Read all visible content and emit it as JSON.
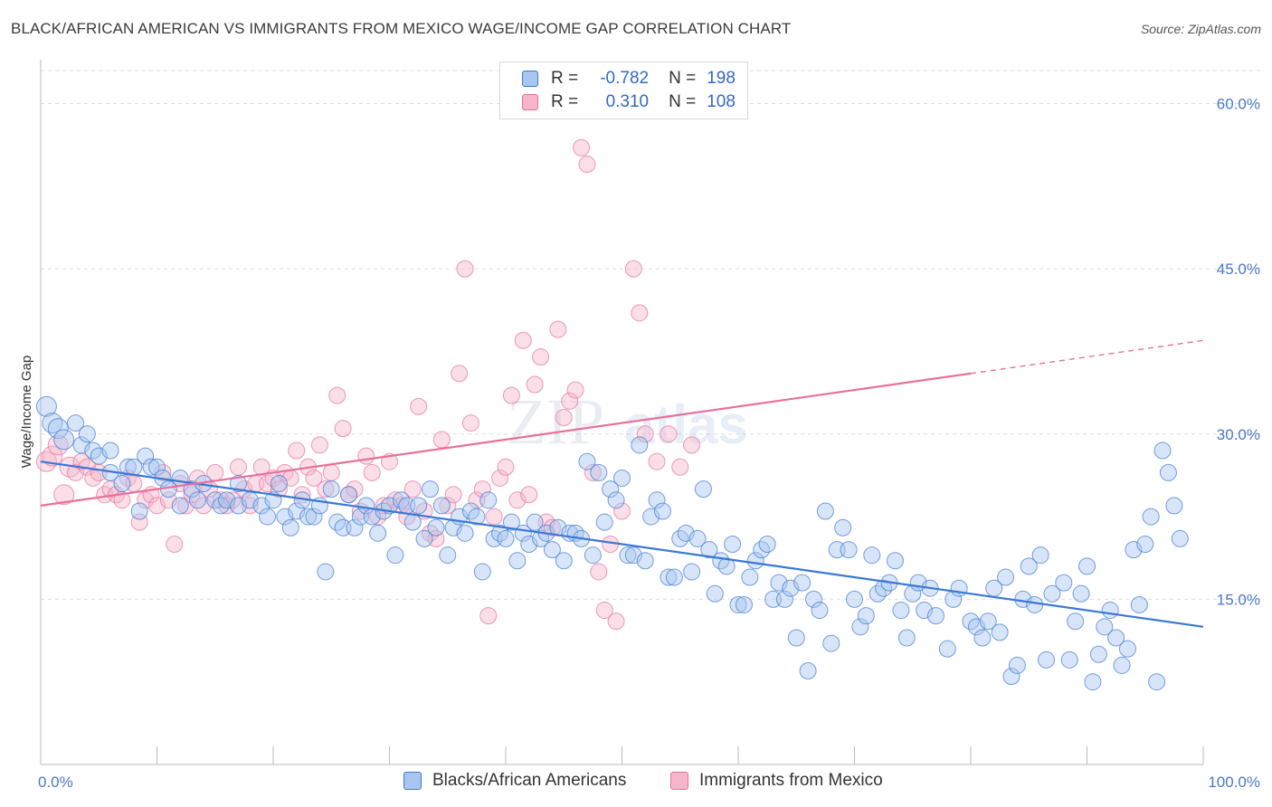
{
  "title": "BLACK/AFRICAN AMERICAN VS IMMIGRANTS FROM MEXICO WAGE/INCOME GAP CORRELATION CHART",
  "source": "Source: ZipAtlas.com",
  "watermark": {
    "zip": "ZIP",
    "atlas": "atlas"
  },
  "legend_top": {
    "rows": [
      {
        "r_label": "R =",
        "r_value": "-0.782",
        "n_label": "N =",
        "n_value": "198"
      },
      {
        "r_label": "R =",
        "r_value": "0.310",
        "n_label": "N =",
        "n_value": "108"
      }
    ]
  },
  "colors": {
    "blue": "#3a78d4",
    "blue_fill": "#a9c6ef",
    "pink": "#e8709a",
    "pink_fill": "#f5b6cb",
    "grid": "#dddddd",
    "axis_text": "#4a78c9"
  },
  "chart_data": {
    "type": "scatter",
    "title": "BLACK/AFRICAN AMERICAN VS IMMIGRANTS FROM MEXICO WAGE/INCOME GAP CORRELATION CHART",
    "xlabel": "",
    "ylabel": "Wage/Income Gap",
    "xlim": [
      0,
      100
    ],
    "ylim": [
      0,
      63
    ],
    "x_tick_labels": [
      "0.0%",
      "100.0%"
    ],
    "y_ticks": [
      15,
      30,
      45,
      60
    ],
    "y_tick_labels": [
      "15.0%",
      "30.0%",
      "45.0%",
      "60.0%"
    ],
    "grid": true,
    "series": [
      {
        "name": "Blacks/African Americans",
        "color": "#3a78d4",
        "r": -0.782,
        "n": 198,
        "trend": {
          "x0": 0,
          "y0": 27.5,
          "x1": 100,
          "y1": 12.5
        },
        "points": [
          [
            0.5,
            32.5
          ],
          [
            1,
            31
          ],
          [
            1.5,
            30.5
          ],
          [
            2,
            29.5
          ],
          [
            3,
            31
          ],
          [
            3.5,
            29
          ],
          [
            4,
            30
          ],
          [
            4.5,
            28.5
          ],
          [
            5,
            28
          ],
          [
            6,
            28.5
          ],
          [
            6,
            26.5
          ],
          [
            7,
            25.5
          ],
          [
            7.5,
            27
          ],
          [
            8,
            27
          ],
          [
            8.5,
            23
          ],
          [
            9,
            28
          ],
          [
            9.5,
            27
          ],
          [
            10,
            27
          ],
          [
            10.5,
            26
          ],
          [
            11,
            25
          ],
          [
            12,
            26
          ],
          [
            12,
            23.5
          ],
          [
            13,
            25
          ],
          [
            13.5,
            24
          ],
          [
            14,
            25.5
          ],
          [
            15,
            24
          ],
          [
            15.5,
            23.5
          ],
          [
            16,
            24
          ],
          [
            17,
            23.5
          ],
          [
            17,
            25.5
          ],
          [
            18,
            24
          ],
          [
            19,
            23.5
          ],
          [
            19.5,
            22.5
          ],
          [
            20,
            24
          ],
          [
            20.5,
            25.5
          ],
          [
            21,
            22.5
          ],
          [
            21.5,
            21.5
          ],
          [
            22,
            23
          ],
          [
            22.5,
            24
          ],
          [
            23,
            22.5
          ],
          [
            23.5,
            22.5
          ],
          [
            24,
            23.5
          ],
          [
            24.5,
            17.5
          ],
          [
            25,
            25
          ],
          [
            25.5,
            22
          ],
          [
            26,
            21.5
          ],
          [
            26.5,
            24.5
          ],
          [
            27,
            21.5
          ],
          [
            27.5,
            22.5
          ],
          [
            28,
            23.5
          ],
          [
            28.5,
            22.5
          ],
          [
            29,
            21
          ],
          [
            29.5,
            23
          ],
          [
            30,
            23.5
          ],
          [
            30.5,
            19
          ],
          [
            31,
            24
          ],
          [
            31.5,
            23.5
          ],
          [
            32,
            22
          ],
          [
            32.5,
            23.5
          ],
          [
            33,
            20.5
          ],
          [
            33.5,
            25
          ],
          [
            34,
            21.5
          ],
          [
            34.5,
            23.5
          ],
          [
            35,
            19
          ],
          [
            35.5,
            21.5
          ],
          [
            36,
            22.5
          ],
          [
            36.5,
            21
          ],
          [
            37,
            23
          ],
          [
            37.5,
            22.5
          ],
          [
            38,
            17.5
          ],
          [
            38.5,
            24
          ],
          [
            39,
            20.5
          ],
          [
            39.5,
            21
          ],
          [
            40,
            20.5
          ],
          [
            40.5,
            22
          ],
          [
            41,
            18.5
          ],
          [
            41.5,
            21
          ],
          [
            42,
            20
          ],
          [
            42.5,
            22
          ],
          [
            43,
            20.5
          ],
          [
            43.5,
            21
          ],
          [
            44,
            19.5
          ],
          [
            44.5,
            21.5
          ],
          [
            45,
            18.5
          ],
          [
            45.5,
            21
          ],
          [
            46,
            21
          ],
          [
            46.5,
            20.5
          ],
          [
            47,
            27.5
          ],
          [
            47.5,
            19
          ],
          [
            48,
            26.5
          ],
          [
            48.5,
            22
          ],
          [
            49,
            25
          ],
          [
            49.5,
            24
          ],
          [
            50,
            26
          ],
          [
            50.5,
            19
          ],
          [
            51,
            19
          ],
          [
            51.5,
            29
          ],
          [
            52,
            18.5
          ],
          [
            52.5,
            22.5
          ],
          [
            53,
            24
          ],
          [
            53.5,
            23
          ],
          [
            54,
            17
          ],
          [
            54.5,
            17
          ],
          [
            55,
            20.5
          ],
          [
            55.5,
            21
          ],
          [
            56,
            17.5
          ],
          [
            56.5,
            20.5
          ],
          [
            57,
            25
          ],
          [
            57.5,
            19.5
          ],
          [
            58,
            15.5
          ],
          [
            58.5,
            18.5
          ],
          [
            59,
            18
          ],
          [
            59.5,
            20
          ],
          [
            60,
            14.5
          ],
          [
            60.5,
            14.5
          ],
          [
            61,
            17
          ],
          [
            61.5,
            18.5
          ],
          [
            62,
            19.5
          ],
          [
            62.5,
            20
          ],
          [
            63,
            15
          ],
          [
            63.5,
            16.5
          ],
          [
            64,
            15
          ],
          [
            64.5,
            16
          ],
          [
            65,
            11.5
          ],
          [
            65.5,
            16.5
          ],
          [
            66,
            8.5
          ],
          [
            66.5,
            15
          ],
          [
            67,
            14
          ],
          [
            67.5,
            23
          ],
          [
            68,
            11
          ],
          [
            68.5,
            19.5
          ],
          [
            69,
            21.5
          ],
          [
            69.5,
            19.5
          ],
          [
            70,
            15
          ],
          [
            70.5,
            12.5
          ],
          [
            71,
            13.5
          ],
          [
            71.5,
            19
          ],
          [
            72,
            15.5
          ],
          [
            72.5,
            16
          ],
          [
            73,
            16.5
          ],
          [
            73.5,
            18.5
          ],
          [
            74,
            14
          ],
          [
            74.5,
            11.5
          ],
          [
            75,
            15.5
          ],
          [
            75.5,
            16.5
          ],
          [
            76,
            14
          ],
          [
            76.5,
            16
          ],
          [
            77,
            13.5
          ],
          [
            78,
            10.5
          ],
          [
            78.5,
            15
          ],
          [
            79,
            16
          ],
          [
            80,
            13
          ],
          [
            80.5,
            12.5
          ],
          [
            81,
            11.5
          ],
          [
            81.5,
            13
          ],
          [
            82,
            16
          ],
          [
            82.5,
            12
          ],
          [
            83,
            17
          ],
          [
            83.5,
            8
          ],
          [
            84,
            9
          ],
          [
            84.5,
            15
          ],
          [
            85,
            18
          ],
          [
            85.5,
            14.5
          ],
          [
            86,
            19
          ],
          [
            86.5,
            9.5
          ],
          [
            87,
            15.5
          ],
          [
            88,
            16.5
          ],
          [
            88.5,
            9.5
          ],
          [
            89,
            13
          ],
          [
            89.5,
            15.5
          ],
          [
            90,
            18
          ],
          [
            90.5,
            7.5
          ],
          [
            91,
            10
          ],
          [
            91.5,
            12.5
          ],
          [
            92,
            14
          ],
          [
            92.5,
            11.5
          ],
          [
            93,
            9
          ],
          [
            93.5,
            10.5
          ],
          [
            94,
            19.5
          ],
          [
            94.5,
            14.5
          ],
          [
            95,
            20
          ],
          [
            95.5,
            22.5
          ],
          [
            96,
            7.5
          ],
          [
            96.5,
            28.5
          ],
          [
            97,
            26.5
          ],
          [
            97.5,
            23.5
          ],
          [
            98,
            20.5
          ]
        ]
      },
      {
        "name": "Immigrants from Mexico",
        "color": "#e8709a",
        "r": 0.31,
        "n": 108,
        "trend": {
          "x0": 0,
          "y0": 23.5,
          "x1": 80,
          "y1": 35.5,
          "x2": 100,
          "y2": 38.5
        },
        "points": [
          [
            0.5,
            27.5
          ],
          [
            1,
            28
          ],
          [
            1.5,
            29
          ],
          [
            2,
            24.5
          ],
          [
            2.5,
            27
          ],
          [
            3,
            26.5
          ],
          [
            3.5,
            27.5
          ],
          [
            4,
            27
          ],
          [
            4.5,
            26
          ],
          [
            5,
            26.5
          ],
          [
            5.5,
            24.5
          ],
          [
            6,
            25
          ],
          [
            6.5,
            24.5
          ],
          [
            7,
            24
          ],
          [
            7.5,
            26
          ],
          [
            8,
            25.5
          ],
          [
            8.5,
            22
          ],
          [
            9,
            24
          ],
          [
            9.5,
            24.5
          ],
          [
            10,
            23.5
          ],
          [
            10.5,
            26.5
          ],
          [
            11,
            24
          ],
          [
            11.5,
            20
          ],
          [
            12,
            25.5
          ],
          [
            12.5,
            23.5
          ],
          [
            13,
            24.5
          ],
          [
            13.5,
            26
          ],
          [
            14,
            23.5
          ],
          [
            14.5,
            25
          ],
          [
            15,
            26.5
          ],
          [
            15.5,
            24
          ],
          [
            16,
            23.5
          ],
          [
            16.5,
            24
          ],
          [
            17,
            27
          ],
          [
            17.5,
            25
          ],
          [
            18,
            23.5
          ],
          [
            18.5,
            25.5
          ],
          [
            19,
            27
          ],
          [
            19.5,
            25.5
          ],
          [
            20,
            26
          ],
          [
            20.5,
            25
          ],
          [
            21,
            26.5
          ],
          [
            21.5,
            26
          ],
          [
            22,
            28.5
          ],
          [
            22.5,
            24.5
          ],
          [
            23,
            27
          ],
          [
            23.5,
            26
          ],
          [
            24,
            29
          ],
          [
            24.5,
            25
          ],
          [
            25,
            26.5
          ],
          [
            25.5,
            33.5
          ],
          [
            26,
            30.5
          ],
          [
            26.5,
            24.5
          ],
          [
            27,
            25
          ],
          [
            27.5,
            23
          ],
          [
            28,
            28
          ],
          [
            28.5,
            26.5
          ],
          [
            29,
            22.5
          ],
          [
            29.5,
            23.5
          ],
          [
            30,
            27.5
          ],
          [
            30.5,
            24
          ],
          [
            31,
            23.5
          ],
          [
            31.5,
            22.5
          ],
          [
            32,
            25
          ],
          [
            32.5,
            32.5
          ],
          [
            33,
            23
          ],
          [
            33.5,
            21
          ],
          [
            34,
            20.5
          ],
          [
            34.5,
            29.5
          ],
          [
            35,
            23.5
          ],
          [
            35.5,
            24.5
          ],
          [
            36,
            35.5
          ],
          [
            36.5,
            45
          ],
          [
            37,
            31
          ],
          [
            37.5,
            24
          ],
          [
            38,
            25
          ],
          [
            38.5,
            13.5
          ],
          [
            39,
            22.5
          ],
          [
            39.5,
            26
          ],
          [
            40,
            27
          ],
          [
            40.5,
            33.5
          ],
          [
            41,
            24
          ],
          [
            41.5,
            38.5
          ],
          [
            42,
            24.5
          ],
          [
            42.5,
            34.5
          ],
          [
            43,
            37
          ],
          [
            43.5,
            22
          ],
          [
            44,
            21.5
          ],
          [
            44.5,
            39.5
          ],
          [
            45,
            31.5
          ],
          [
            45.5,
            33
          ],
          [
            46,
            34
          ],
          [
            46.5,
            56
          ],
          [
            47,
            54.5
          ],
          [
            47.5,
            26.5
          ],
          [
            48,
            17.5
          ],
          [
            48.5,
            14
          ],
          [
            49,
            20
          ],
          [
            49.5,
            13
          ],
          [
            50,
            23
          ],
          [
            51,
            45
          ],
          [
            51.5,
            41
          ],
          [
            52,
            30
          ],
          [
            53,
            27.5
          ],
          [
            54,
            30
          ],
          [
            55,
            27
          ],
          [
            56,
            29
          ]
        ]
      }
    ]
  },
  "legend_bottom": [
    {
      "label": "Blacks/African Americans"
    },
    {
      "label": "Immigrants from Mexico"
    }
  ]
}
